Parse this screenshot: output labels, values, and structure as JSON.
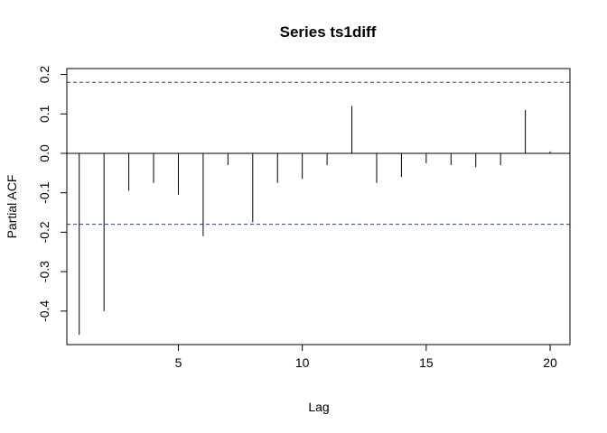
{
  "chart_data": {
    "type": "bar",
    "title": "Series  ts1diff",
    "xlabel": "Lag",
    "ylabel": "Partial ACF",
    "xlim": [
      0.5,
      20.8
    ],
    "ylim": [
      -0.485,
      0.215
    ],
    "x_ticks": [
      5,
      10,
      15,
      20
    ],
    "y_ticks": [
      -0.4,
      -0.3,
      -0.2,
      -0.1,
      0.0,
      0.1,
      0.2
    ],
    "y_tick_labels": [
      "-0.4",
      "-0.3",
      "-0.2",
      "-0.1",
      "0.0",
      "0.1",
      "0.2"
    ],
    "x_tick_labels": [
      "5",
      "10",
      "15",
      "20"
    ],
    "confidence_bound": 0.18,
    "lags": [
      1,
      2,
      3,
      4,
      5,
      6,
      7,
      8,
      9,
      10,
      11,
      12,
      13,
      14,
      15,
      16,
      17,
      18,
      19,
      20
    ],
    "values": [
      -0.46,
      -0.4,
      -0.095,
      -0.075,
      -0.105,
      -0.21,
      -0.03,
      -0.175,
      -0.075,
      -0.065,
      -0.03,
      0.12,
      -0.075,
      -0.06,
      -0.025,
      -0.03,
      -0.035,
      -0.03,
      0.11,
      0.005
    ],
    "grid": false,
    "colors": {
      "lines": "#000000",
      "bound": "#1f3fa8"
    }
  }
}
